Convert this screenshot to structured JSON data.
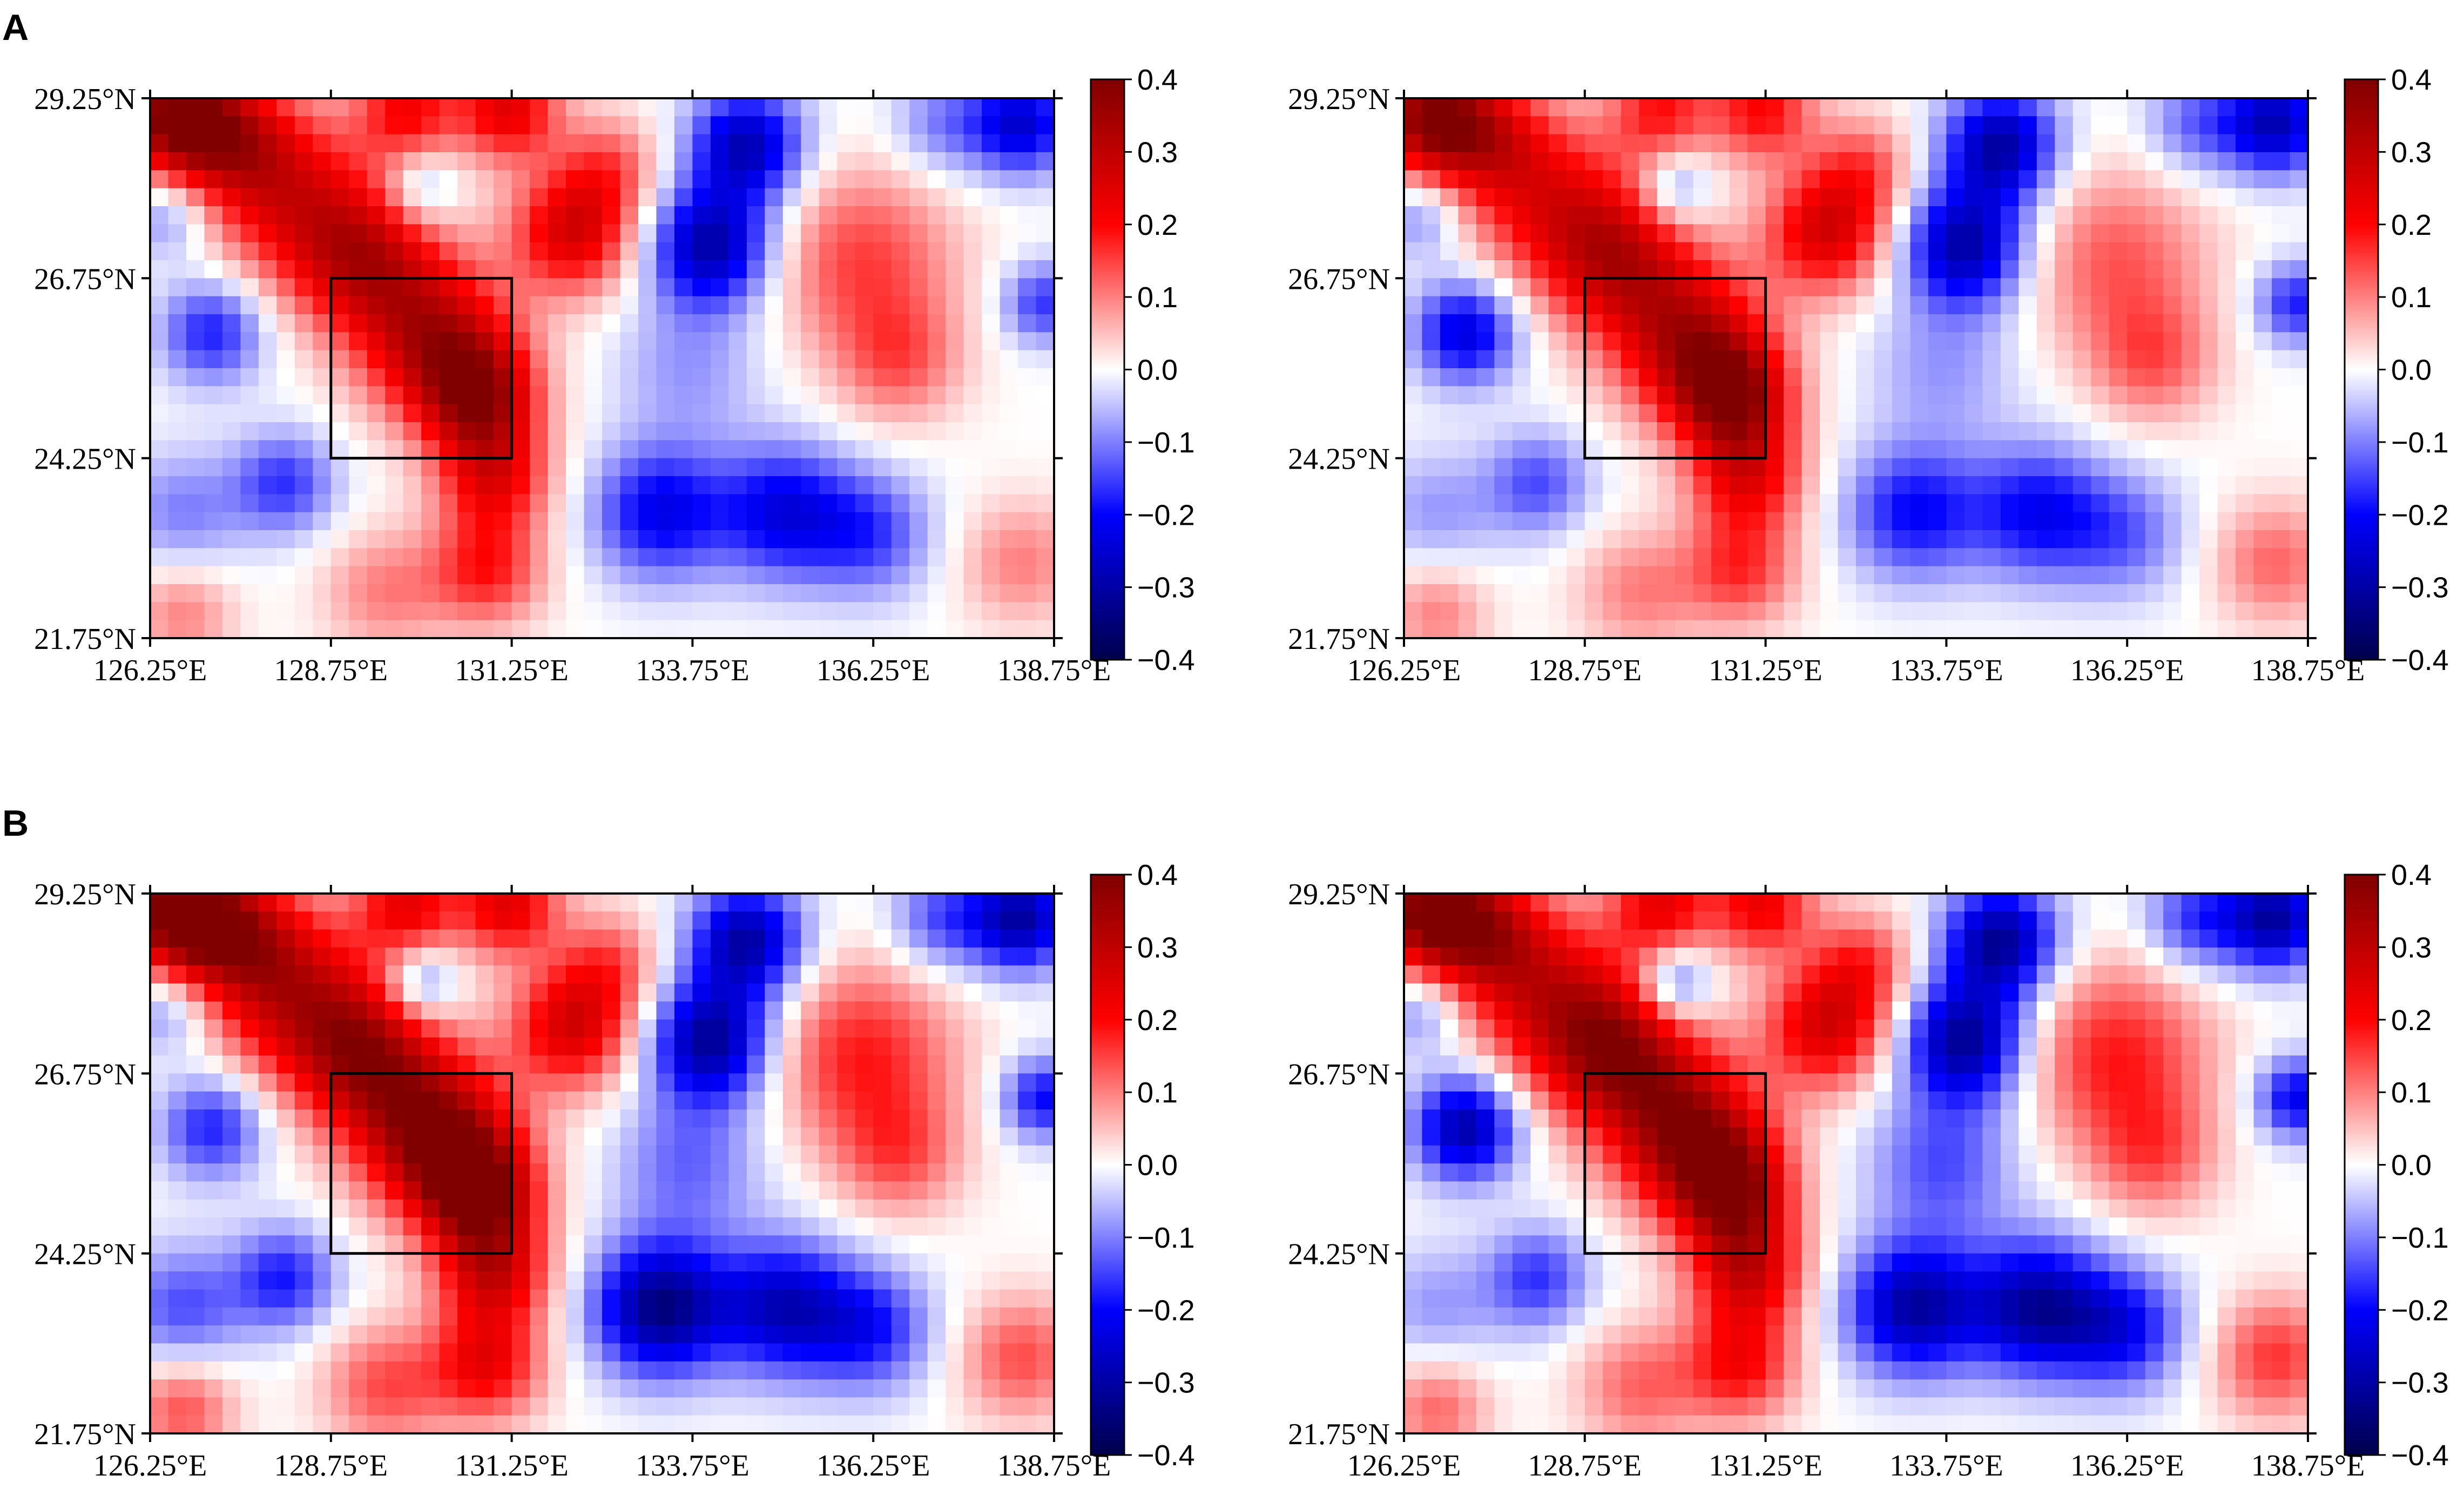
{
  "figure": {
    "panel_labels": [
      "A",
      "B"
    ]
  },
  "chart_data": [
    {
      "type": "heatmap",
      "row": "A",
      "column": "left",
      "xticks": [
        "126.25°E",
        "128.75°E",
        "131.25°E",
        "133.75°E",
        "136.25°E",
        "138.75°E"
      ],
      "yticks": [
        "29.25°N",
        "26.75°N",
        "24.25°N",
        "21.75°N"
      ],
      "xlim": [
        126.25,
        138.75
      ],
      "ylim": [
        21.75,
        29.25
      ],
      "colorbar": {
        "range": [
          -0.4,
          0.4
        ],
        "ticks": [
          "0.4",
          "0.3",
          "0.2",
          "0.1",
          "0.0",
          "−0.1",
          "−0.2",
          "−0.3",
          "−0.4"
        ],
        "colormap": "seismic"
      },
      "box": {
        "lon": [
          128.75,
          131.25
        ],
        "lat": [
          24.25,
          26.75
        ]
      },
      "blobs": [
        {
          "lon": 126.6,
          "lat": 29.0,
          "value": 0.38,
          "sigma": 0.55
        },
        {
          "lon": 127.4,
          "lat": 28.7,
          "value": 0.22,
          "sigma": 0.6
        },
        {
          "lon": 128.2,
          "lat": 27.9,
          "value": 0.22,
          "sigma": 0.8
        },
        {
          "lon": 129.2,
          "lat": 27.0,
          "value": 0.26,
          "sigma": 0.7
        },
        {
          "lon": 130.2,
          "lat": 25.9,
          "value": 0.3,
          "sigma": 0.75
        },
        {
          "lon": 130.8,
          "lat": 25.1,
          "value": 0.3,
          "sigma": 0.55
        },
        {
          "lon": 131.0,
          "lat": 24.0,
          "value": 0.22,
          "sigma": 0.55
        },
        {
          "lon": 130.9,
          "lat": 22.7,
          "value": 0.18,
          "sigma": 0.55
        },
        {
          "lon": 129.8,
          "lat": 29.1,
          "value": 0.2,
          "sigma": 0.5
        },
        {
          "lon": 131.2,
          "lat": 29.1,
          "value": 0.24,
          "sigma": 0.5
        },
        {
          "lon": 132.1,
          "lat": 27.4,
          "value": 0.26,
          "sigma": 0.6
        },
        {
          "lon": 132.6,
          "lat": 28.3,
          "value": 0.12,
          "sigma": 0.5
        },
        {
          "lon": 129.5,
          "lat": 22.4,
          "value": 0.1,
          "sigma": 0.6
        },
        {
          "lon": 136.1,
          "lat": 27.0,
          "value": 0.15,
          "sigma": 0.9
        },
        {
          "lon": 136.6,
          "lat": 25.6,
          "value": 0.12,
          "sigma": 0.6
        },
        {
          "lon": 138.3,
          "lat": 22.8,
          "value": 0.1,
          "sigma": 0.6
        },
        {
          "lon": 126.7,
          "lat": 22.1,
          "value": 0.1,
          "sigma": 0.5
        },
        {
          "lon": 127.1,
          "lat": 26.0,
          "value": -0.18,
          "sigma": 0.5
        },
        {
          "lon": 128.1,
          "lat": 23.9,
          "value": -0.16,
          "sigma": 0.5
        },
        {
          "lon": 126.7,
          "lat": 23.5,
          "value": -0.1,
          "sigma": 0.6
        },
        {
          "lon": 126.5,
          "lat": 27.6,
          "value": -0.1,
          "sigma": 0.4
        },
        {
          "lon": 130.0,
          "lat": 28.0,
          "value": -0.1,
          "sigma": 0.35
        },
        {
          "lon": 134.0,
          "lat": 27.2,
          "value": -0.3,
          "sigma": 0.6
        },
        {
          "lon": 134.5,
          "lat": 28.6,
          "value": -0.28,
          "sigma": 0.55
        },
        {
          "lon": 138.3,
          "lat": 28.9,
          "value": -0.25,
          "sigma": 0.5
        },
        {
          "lon": 137.2,
          "lat": 28.9,
          "value": -0.1,
          "sigma": 0.5
        },
        {
          "lon": 138.6,
          "lat": 26.4,
          "value": -0.16,
          "sigma": 0.4
        },
        {
          "lon": 133.3,
          "lat": 23.5,
          "value": -0.22,
          "sigma": 0.65
        },
        {
          "lon": 135.0,
          "lat": 23.5,
          "value": -0.22,
          "sigma": 0.65
        },
        {
          "lon": 136.2,
          "lat": 23.2,
          "value": -0.15,
          "sigma": 0.6
        },
        {
          "lon": 133.7,
          "lat": 25.5,
          "value": -0.08,
          "sigma": 0.7
        }
      ]
    },
    {
      "type": "heatmap",
      "row": "A",
      "column": "right",
      "xticks": [
        "126.25°E",
        "128.75°E",
        "131.25°E",
        "133.75°E",
        "136.25°E",
        "138.75°E"
      ],
      "yticks": [
        "29.25°N",
        "26.75°N",
        "24.25°N",
        "21.75°N"
      ],
      "xlim": [
        126.25,
        138.75
      ],
      "ylim": [
        21.75,
        29.25
      ],
      "colorbar": {
        "range": [
          -0.4,
          0.4
        ],
        "ticks": [
          "0.4",
          "0.3",
          "0.2",
          "0.1",
          "0.0",
          "−0.1",
          "−0.2",
          "−0.3",
          "−0.4"
        ],
        "colormap": "seismic"
      },
      "box": {
        "lon": [
          128.75,
          131.25
        ],
        "lat": [
          24.25,
          26.75
        ]
      },
      "blobs": [
        {
          "lon": 126.6,
          "lat": 29.0,
          "value": 0.35,
          "sigma": 0.55
        },
        {
          "lon": 127.4,
          "lat": 28.7,
          "value": 0.2,
          "sigma": 0.6
        },
        {
          "lon": 128.3,
          "lat": 27.8,
          "value": 0.2,
          "sigma": 0.8
        },
        {
          "lon": 129.2,
          "lat": 27.0,
          "value": 0.24,
          "sigma": 0.7
        },
        {
          "lon": 130.2,
          "lat": 25.9,
          "value": 0.3,
          "sigma": 0.75
        },
        {
          "lon": 130.8,
          "lat": 25.1,
          "value": 0.32,
          "sigma": 0.55
        },
        {
          "lon": 131.0,
          "lat": 24.0,
          "value": 0.22,
          "sigma": 0.55
        },
        {
          "lon": 130.9,
          "lat": 22.7,
          "value": 0.16,
          "sigma": 0.55
        },
        {
          "lon": 129.8,
          "lat": 29.1,
          "value": 0.18,
          "sigma": 0.5
        },
        {
          "lon": 131.2,
          "lat": 29.1,
          "value": 0.2,
          "sigma": 0.5
        },
        {
          "lon": 132.1,
          "lat": 27.4,
          "value": 0.26,
          "sigma": 0.6
        },
        {
          "lon": 132.6,
          "lat": 28.3,
          "value": 0.12,
          "sigma": 0.5
        },
        {
          "lon": 129.5,
          "lat": 22.4,
          "value": 0.1,
          "sigma": 0.6
        },
        {
          "lon": 136.1,
          "lat": 27.0,
          "value": 0.13,
          "sigma": 0.9
        },
        {
          "lon": 136.6,
          "lat": 25.6,
          "value": 0.12,
          "sigma": 0.6
        },
        {
          "lon": 138.3,
          "lat": 22.8,
          "value": 0.12,
          "sigma": 0.6
        },
        {
          "lon": 126.7,
          "lat": 22.1,
          "value": 0.1,
          "sigma": 0.5
        },
        {
          "lon": 127.1,
          "lat": 26.0,
          "value": -0.24,
          "sigma": 0.5
        },
        {
          "lon": 128.1,
          "lat": 23.9,
          "value": -0.14,
          "sigma": 0.5
        },
        {
          "lon": 126.7,
          "lat": 23.5,
          "value": -0.08,
          "sigma": 0.6
        },
        {
          "lon": 126.5,
          "lat": 27.6,
          "value": -0.1,
          "sigma": 0.4
        },
        {
          "lon": 130.0,
          "lat": 28.0,
          "value": -0.12,
          "sigma": 0.35
        },
        {
          "lon": 134.0,
          "lat": 27.2,
          "value": -0.3,
          "sigma": 0.6
        },
        {
          "lon": 134.5,
          "lat": 28.6,
          "value": -0.3,
          "sigma": 0.55
        },
        {
          "lon": 138.3,
          "lat": 28.9,
          "value": -0.28,
          "sigma": 0.5
        },
        {
          "lon": 137.2,
          "lat": 28.9,
          "value": -0.12,
          "sigma": 0.5
        },
        {
          "lon": 138.6,
          "lat": 26.4,
          "value": -0.18,
          "sigma": 0.4
        },
        {
          "lon": 133.3,
          "lat": 23.5,
          "value": -0.2,
          "sigma": 0.65
        },
        {
          "lon": 135.0,
          "lat": 23.5,
          "value": -0.2,
          "sigma": 0.65
        },
        {
          "lon": 136.2,
          "lat": 23.2,
          "value": -0.12,
          "sigma": 0.6
        },
        {
          "lon": 133.7,
          "lat": 25.5,
          "value": -0.08,
          "sigma": 0.7
        }
      ]
    },
    {
      "type": "heatmap",
      "row": "B",
      "column": "left",
      "xticks": [
        "126.25°E",
        "128.75°E",
        "131.25°E",
        "133.75°E",
        "136.25°E",
        "138.75°E"
      ],
      "yticks": [
        "29.25°N",
        "26.75°N",
        "24.25°N",
        "21.75°N"
      ],
      "xlim": [
        126.25,
        138.75
      ],
      "ylim": [
        21.75,
        29.25
      ],
      "colorbar": {
        "range": [
          -0.4,
          0.4
        ],
        "ticks": [
          "0.4",
          "0.3",
          "0.2",
          "0.1",
          "0.0",
          "−0.1",
          "−0.2",
          "−0.3",
          "−0.4"
        ],
        "colormap": "seismic"
      },
      "box": {
        "lon": [
          128.75,
          131.25
        ],
        "lat": [
          24.25,
          26.75
        ]
      },
      "blobs": [
        {
          "lon": 126.6,
          "lat": 29.0,
          "value": 0.4,
          "sigma": 0.55
        },
        {
          "lon": 127.4,
          "lat": 28.7,
          "value": 0.25,
          "sigma": 0.6
        },
        {
          "lon": 128.2,
          "lat": 27.9,
          "value": 0.26,
          "sigma": 0.8
        },
        {
          "lon": 129.2,
          "lat": 27.0,
          "value": 0.3,
          "sigma": 0.7
        },
        {
          "lon": 130.2,
          "lat": 25.9,
          "value": 0.38,
          "sigma": 0.75
        },
        {
          "lon": 130.8,
          "lat": 25.1,
          "value": 0.34,
          "sigma": 0.55
        },
        {
          "lon": 131.0,
          "lat": 24.0,
          "value": 0.26,
          "sigma": 0.55
        },
        {
          "lon": 130.9,
          "lat": 22.7,
          "value": 0.22,
          "sigma": 0.55
        },
        {
          "lon": 129.8,
          "lat": 29.1,
          "value": 0.22,
          "sigma": 0.5
        },
        {
          "lon": 131.2,
          "lat": 29.1,
          "value": 0.24,
          "sigma": 0.5
        },
        {
          "lon": 132.1,
          "lat": 27.4,
          "value": 0.26,
          "sigma": 0.6
        },
        {
          "lon": 132.6,
          "lat": 28.3,
          "value": 0.12,
          "sigma": 0.5
        },
        {
          "lon": 129.5,
          "lat": 22.4,
          "value": 0.14,
          "sigma": 0.6
        },
        {
          "lon": 136.1,
          "lat": 27.0,
          "value": 0.18,
          "sigma": 0.9
        },
        {
          "lon": 136.6,
          "lat": 25.6,
          "value": 0.12,
          "sigma": 0.6
        },
        {
          "lon": 138.3,
          "lat": 22.8,
          "value": 0.14,
          "sigma": 0.6
        },
        {
          "lon": 126.7,
          "lat": 22.1,
          "value": 0.14,
          "sigma": 0.5
        },
        {
          "lon": 127.1,
          "lat": 26.0,
          "value": -0.18,
          "sigma": 0.5
        },
        {
          "lon": 128.1,
          "lat": 23.9,
          "value": -0.18,
          "sigma": 0.5
        },
        {
          "lon": 126.7,
          "lat": 23.5,
          "value": -0.14,
          "sigma": 0.6
        },
        {
          "lon": 126.5,
          "lat": 27.6,
          "value": -0.1,
          "sigma": 0.4
        },
        {
          "lon": 130.0,
          "lat": 28.0,
          "value": -0.14,
          "sigma": 0.35
        },
        {
          "lon": 134.0,
          "lat": 27.2,
          "value": -0.32,
          "sigma": 0.6
        },
        {
          "lon": 134.5,
          "lat": 28.6,
          "value": -0.3,
          "sigma": 0.55
        },
        {
          "lon": 138.3,
          "lat": 28.9,
          "value": -0.3,
          "sigma": 0.5
        },
        {
          "lon": 137.2,
          "lat": 28.9,
          "value": -0.14,
          "sigma": 0.5
        },
        {
          "lon": 138.6,
          "lat": 26.4,
          "value": -0.2,
          "sigma": 0.4
        },
        {
          "lon": 133.3,
          "lat": 23.5,
          "value": -0.34,
          "sigma": 0.65
        },
        {
          "lon": 135.0,
          "lat": 23.5,
          "value": -0.26,
          "sigma": 0.65
        },
        {
          "lon": 136.2,
          "lat": 23.2,
          "value": -0.18,
          "sigma": 0.6
        },
        {
          "lon": 133.7,
          "lat": 25.5,
          "value": -0.12,
          "sigma": 0.7
        }
      ]
    },
    {
      "type": "heatmap",
      "row": "B",
      "column": "right",
      "xticks": [
        "126.25°E",
        "128.75°E",
        "131.25°E",
        "133.75°E",
        "136.25°E",
        "138.75°E"
      ],
      "yticks": [
        "29.25°N",
        "26.75°N",
        "24.25°N",
        "21.75°N"
      ],
      "xlim": [
        126.25,
        138.75
      ],
      "ylim": [
        21.75,
        29.25
      ],
      "colorbar": {
        "range": [
          -0.4,
          0.4
        ],
        "ticks": [
          "0.4",
          "0.3",
          "0.2",
          "0.1",
          "0.0",
          "−0.1",
          "−0.2",
          "−0.3",
          "−0.4"
        ],
        "colormap": "seismic"
      },
      "box": {
        "lon": [
          128.75,
          131.25
        ],
        "lat": [
          24.25,
          26.75
        ]
      },
      "blobs": [
        {
          "lon": 126.6,
          "lat": 29.0,
          "value": 0.38,
          "sigma": 0.55
        },
        {
          "lon": 127.4,
          "lat": 28.7,
          "value": 0.24,
          "sigma": 0.6
        },
        {
          "lon": 128.3,
          "lat": 27.8,
          "value": 0.24,
          "sigma": 0.8
        },
        {
          "lon": 129.2,
          "lat": 27.0,
          "value": 0.3,
          "sigma": 0.7
        },
        {
          "lon": 130.2,
          "lat": 25.9,
          "value": 0.36,
          "sigma": 0.75
        },
        {
          "lon": 130.8,
          "lat": 25.1,
          "value": 0.3,
          "sigma": 0.55
        },
        {
          "lon": 131.0,
          "lat": 24.0,
          "value": 0.26,
          "sigma": 0.55
        },
        {
          "lon": 130.9,
          "lat": 22.7,
          "value": 0.2,
          "sigma": 0.55
        },
        {
          "lon": 129.8,
          "lat": 29.1,
          "value": 0.22,
          "sigma": 0.5
        },
        {
          "lon": 131.2,
          "lat": 29.1,
          "value": 0.22,
          "sigma": 0.5
        },
        {
          "lon": 132.1,
          "lat": 27.4,
          "value": 0.26,
          "sigma": 0.6
        },
        {
          "lon": 132.6,
          "lat": 28.3,
          "value": 0.14,
          "sigma": 0.5
        },
        {
          "lon": 129.5,
          "lat": 22.4,
          "value": 0.12,
          "sigma": 0.6
        },
        {
          "lon": 136.1,
          "lat": 27.0,
          "value": 0.18,
          "sigma": 0.9
        },
        {
          "lon": 136.6,
          "lat": 25.6,
          "value": 0.12,
          "sigma": 0.6
        },
        {
          "lon": 138.3,
          "lat": 22.8,
          "value": 0.16,
          "sigma": 0.6
        },
        {
          "lon": 126.7,
          "lat": 22.1,
          "value": 0.12,
          "sigma": 0.5
        },
        {
          "lon": 127.1,
          "lat": 26.0,
          "value": -0.3,
          "sigma": 0.5
        },
        {
          "lon": 128.1,
          "lat": 23.9,
          "value": -0.16,
          "sigma": 0.5
        },
        {
          "lon": 126.7,
          "lat": 23.5,
          "value": -0.08,
          "sigma": 0.6
        },
        {
          "lon": 126.5,
          "lat": 27.6,
          "value": -0.1,
          "sigma": 0.4
        },
        {
          "lon": 130.0,
          "lat": 28.0,
          "value": -0.16,
          "sigma": 0.35
        },
        {
          "lon": 134.0,
          "lat": 27.2,
          "value": -0.32,
          "sigma": 0.6
        },
        {
          "lon": 134.5,
          "lat": 28.6,
          "value": -0.32,
          "sigma": 0.55
        },
        {
          "lon": 138.3,
          "lat": 28.9,
          "value": -0.3,
          "sigma": 0.5
        },
        {
          "lon": 137.2,
          "lat": 28.9,
          "value": -0.16,
          "sigma": 0.5
        },
        {
          "lon": 138.6,
          "lat": 26.4,
          "value": -0.22,
          "sigma": 0.4
        },
        {
          "lon": 133.3,
          "lat": 23.5,
          "value": -0.3,
          "sigma": 0.65
        },
        {
          "lon": 135.0,
          "lat": 23.5,
          "value": -0.3,
          "sigma": 0.65
        },
        {
          "lon": 136.2,
          "lat": 23.2,
          "value": -0.2,
          "sigma": 0.6
        },
        {
          "lon": 133.7,
          "lat": 25.5,
          "value": -0.14,
          "sigma": 0.7
        }
      ]
    }
  ]
}
